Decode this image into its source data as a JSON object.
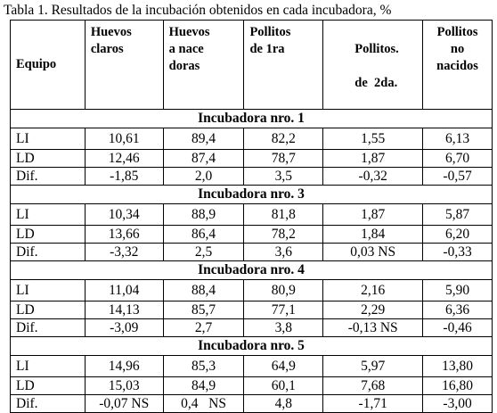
{
  "caption": "Tabla 1. Resultados de la incubación obtenidos en cada incubadora, %",
  "headers": {
    "equipo": "Equipo",
    "huevos_claros": [
      "Huevos",
      "claros"
    ],
    "huevos_nacedoras": [
      "Huevos",
      "a nace",
      "doras"
    ],
    "pollitos_1ra": [
      "Pollitos",
      "de 1ra"
    ],
    "pollitos_2da": [
      "Pollitos.",
      "de  2da."
    ],
    "pollitos_no_nacidos": [
      "Pollitos",
      "no",
      "nacidos"
    ]
  },
  "sections": [
    {
      "title": "Incubadora nro. 1",
      "rows": [
        [
          "LI",
          "10,61",
          "89,4",
          "82,2",
          "1,55",
          "6,13"
        ],
        [
          "LD",
          "12,46",
          "87,4",
          "78,7",
          "1,87",
          "6,70"
        ],
        [
          "Dif.",
          "-1,85",
          "2,0",
          "3,5",
          "-0,32",
          "-0,57"
        ]
      ]
    },
    {
      "title": "Incubadora nro. 3",
      "rows": [
        [
          "LI",
          "10,34",
          "88,9",
          "81,8",
          "1,87",
          "5,87"
        ],
        [
          "LD",
          "13,66",
          "86,4",
          "78,2",
          "1,84",
          "6,20"
        ],
        [
          "Dif.",
          "-3,32",
          "2,5",
          "3,6",
          "0,03 NS",
          "-0,33"
        ]
      ]
    },
    {
      "title": "Incubadora nro. 4",
      "rows": [
        [
          "LI",
          "11,04",
          "88,4",
          "80,9",
          "2,16",
          "5,90"
        ],
        [
          "LD",
          "14,13",
          "85,7",
          "77,1",
          "2,29",
          "6,36"
        ],
        [
          "Dif.",
          "-3,09",
          "2,7",
          "3,8",
          "-0,13 NS",
          "-0,46"
        ]
      ]
    },
    {
      "title": "Incubadora nro. 5",
      "rows": [
        [
          "LI",
          "14,96",
          "85,3",
          "64,9",
          "5,97",
          "13,80"
        ],
        [
          "LD",
          "15,03",
          "84,9",
          "60,1",
          "7,68",
          "16,80"
        ],
        [
          "Dif.",
          "-0,07 NS",
          "0,4   NS",
          "4,8",
          "-1,71",
          "-3,00"
        ]
      ]
    }
  ]
}
